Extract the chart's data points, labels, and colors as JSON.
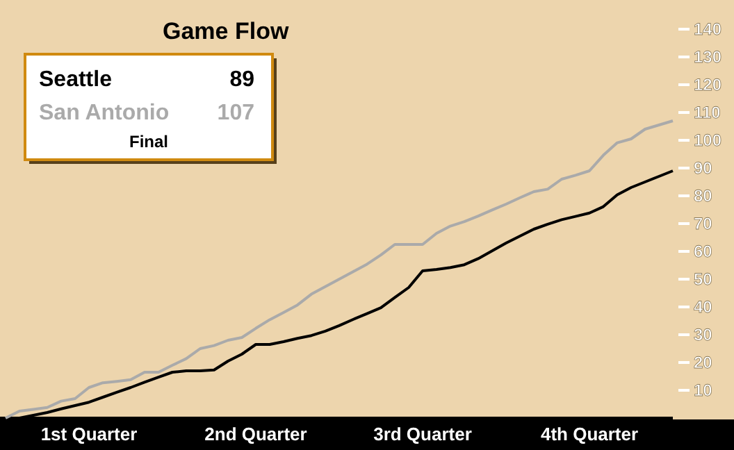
{
  "chart_data": {
    "type": "line",
    "title": "Game Flow",
    "ylim": [
      0,
      150
    ],
    "categories": [
      null,
      null,
      null,
      null,
      null,
      null,
      "1st Quarter",
      null,
      null,
      null,
      null,
      null,
      null,
      null,
      null,
      null,
      null,
      null,
      "2nd Quarter",
      null,
      null,
      null,
      null,
      null,
      null,
      null,
      null,
      null,
      null,
      null,
      "3rd Quarter",
      null,
      null,
      null,
      null,
      null,
      null,
      null,
      null,
      null,
      null,
      null,
      "4th Quarter",
      null,
      null,
      null,
      null,
      null,
      null
    ],
    "yticks": [
      10,
      20,
      30,
      40,
      50,
      60,
      70,
      80,
      90,
      100,
      110,
      120,
      130,
      140
    ],
    "line_style": "solid",
    "marker": "none",
    "annotations": [
      "89",
      "107",
      "Final"
    ],
    "series": [
      {
        "name": "Seattle",
        "color": "#000000",
        "values": [
          0,
          0,
          1,
          2,
          3.3,
          4.5,
          5.7,
          7.5,
          9.3,
          11,
          12.9,
          14.7,
          16.5,
          17,
          17,
          17.3,
          20.5,
          23,
          26.5,
          26.5,
          27.5,
          28.7,
          29.7,
          31.3,
          33.3,
          35.5,
          37.6,
          39.7,
          43.4,
          47,
          53,
          53.5,
          54.2,
          55.2,
          57.4,
          60.2,
          63,
          65.5,
          68,
          69.8,
          71.4,
          72.6,
          73.8,
          76.1,
          80.4,
          83,
          85,
          87,
          89
        ]
      },
      {
        "name": "San Antonio",
        "color": "#aaaaaa",
        "values": [
          0,
          2.5,
          3.1,
          3.8,
          6.1,
          7,
          11,
          12.7,
          13.2,
          13.8,
          16.5,
          16.5,
          19,
          21.4,
          25,
          26.1,
          28,
          29,
          32.3,
          35.4,
          38,
          40.7,
          44.6,
          47.3,
          50,
          52.7,
          55.4,
          58.7,
          62.5,
          62.5,
          62.5,
          66.5,
          69.1,
          70.7,
          72.7,
          74.9,
          77,
          79.3,
          81.5,
          82.4,
          86,
          87.4,
          89,
          94.6,
          99.1,
          100.5,
          104,
          105.5,
          107
        ]
      }
    ]
  }
}
